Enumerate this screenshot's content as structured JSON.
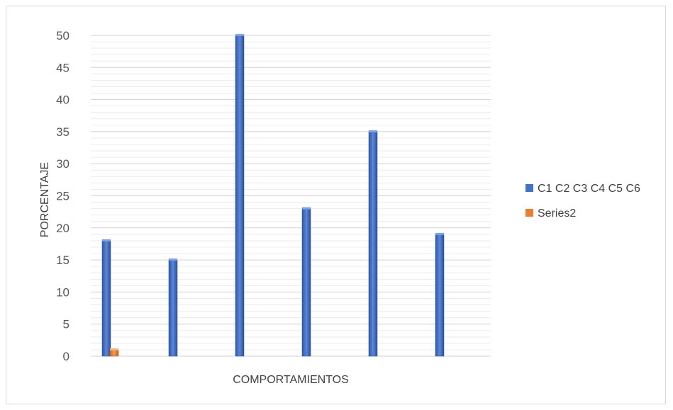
{
  "chart_data": {
    "type": "bar",
    "xlabel": "COMPORTAMIENTOS",
    "ylabel": "PORCENTAJE",
    "ylim": [
      0,
      50
    ],
    "yticks": [
      0,
      5,
      10,
      15,
      20,
      25,
      30,
      35,
      40,
      45,
      50
    ],
    "grid": true,
    "legend_position": "right",
    "categories": [
      "",
      "",
      "",
      "",
      "",
      ""
    ],
    "series": [
      {
        "name": "C1 C2 C3 C4 C5 C6",
        "color": "#4472c4",
        "values": [
          18,
          15,
          50,
          23,
          35,
          19
        ]
      },
      {
        "name": "Series2",
        "color": "#ed7d31",
        "values": [
          1,
          null,
          null,
          null,
          null,
          null
        ]
      }
    ]
  }
}
